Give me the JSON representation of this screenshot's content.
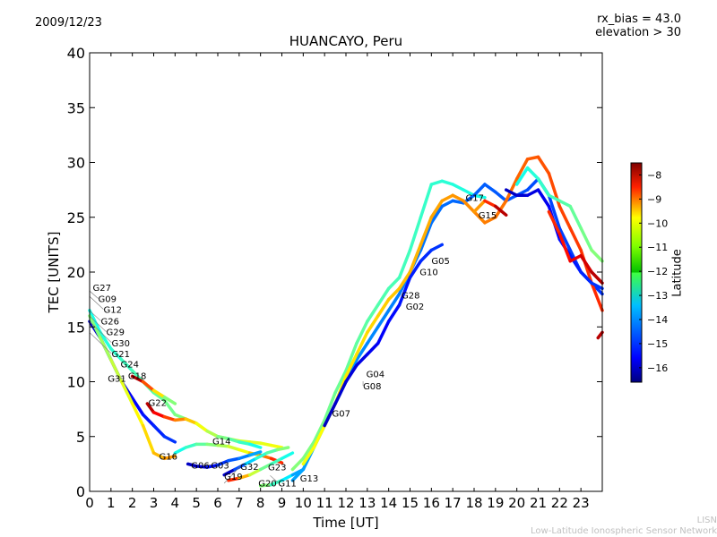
{
  "header": {
    "date": "2009/12/23",
    "rx_bias": "rx_bias = 43.0",
    "elevation": "elevation > 30"
  },
  "footer": {
    "short_name": "LISN",
    "long_name": "Low-Latitude Ionospheric Sensor Network"
  },
  "colorbar": {
    "label": "Latitude",
    "range": [
      -16.6,
      -7.5
    ],
    "ticks": [
      "−8",
      "−9",
      "−10",
      "−11",
      "−12",
      "−13",
      "−14",
      "−15",
      "−16"
    ],
    "tick_values": [
      -8,
      -9,
      -10,
      -11,
      -12,
      -13,
      -14,
      -15,
      -16
    ],
    "colormap": "jet"
  },
  "chart_data": {
    "type": "line",
    "title": "HUANCAYO, Peru",
    "xlabel": "Time [UT]",
    "ylabel": "TEC [UNITS]",
    "xlim": [
      0,
      24
    ],
    "ylim": [
      0,
      40
    ],
    "xticks": [
      "0",
      "1",
      "2",
      "3",
      "4",
      "5",
      "6",
      "7",
      "8",
      "9",
      "10",
      "11",
      "12",
      "13",
      "14",
      "15",
      "16",
      "17",
      "18",
      "19",
      "20",
      "21",
      "22",
      "23"
    ],
    "yticks": [
      "0",
      "5",
      "10",
      "15",
      "20",
      "25",
      "30",
      "35",
      "40"
    ],
    "grid": false,
    "series": [
      {
        "name": "G24-arc",
        "lat": [
          -13,
          -12,
          -11
        ],
        "x": [
          0,
          0.5,
          1,
          1.5,
          2,
          2.5,
          3,
          3.5,
          4,
          4.5,
          5,
          5.5,
          6,
          6.5,
          7,
          7.5,
          8,
          8.5,
          9
        ],
        "y": [
          16.5,
          14.5,
          13,
          12,
          11,
          10,
          9,
          8.3,
          7,
          6.6,
          6.2,
          5.5,
          5,
          4.8,
          4.6,
          4.5,
          4.4,
          4.2,
          4
        ]
      },
      {
        "name": "G18-arc",
        "lat": [
          -8,
          -10,
          -12
        ],
        "x": [
          2,
          2.5,
          3,
          3.5,
          4
        ],
        "y": [
          10.5,
          10,
          9.2,
          8.6,
          8
        ]
      },
      {
        "name": "G31-arc",
        "lat": [
          -16,
          -15
        ],
        "x": [
          0,
          0.5,
          1,
          1.5,
          2,
          2.5,
          3,
          3.5,
          4
        ],
        "y": [
          15.5,
          14,
          12,
          10,
          8.5,
          7,
          6,
          5,
          4.5
        ]
      },
      {
        "name": "G16-arc",
        "lat": [
          -12,
          -11,
          -10
        ],
        "x": [
          0,
          0.5,
          1,
          1.5,
          2,
          2.5,
          3,
          3.5,
          4
        ],
        "y": [
          16,
          14,
          12,
          10,
          8,
          6,
          3.5,
          3,
          3.2
        ]
      },
      {
        "name": "G22-arc",
        "lat": [
          -8,
          -10,
          -12,
          -13
        ],
        "x": [
          2.7,
          3,
          3.5,
          4,
          4.5,
          5,
          5.5,
          6,
          6.5,
          7,
          7.5,
          8
        ],
        "y": [
          8,
          7.2,
          6.8,
          6.5,
          6.6,
          6.2,
          5.5,
          5,
          4.8,
          4.5,
          4.3,
          4
        ]
      },
      {
        "name": "G14-arc",
        "lat": [
          -13,
          -12,
          -11,
          -9
        ],
        "x": [
          4,
          4.5,
          5,
          5.5,
          6,
          6.5,
          7,
          7.5,
          8,
          8.5,
          9
        ],
        "y": [
          3.5,
          4,
          4.3,
          4.3,
          4.2,
          4.1,
          3.8,
          3.5,
          3.3,
          3,
          2.6
        ]
      },
      {
        "name": "G03-arc",
        "lat": [
          -16,
          -15,
          -14
        ],
        "x": [
          4.6,
          5,
          5.5,
          6,
          6.5,
          7,
          7.5,
          8
        ],
        "y": [
          2.5,
          2.3,
          2.2,
          2.4,
          2.8,
          3,
          3.3,
          3.6
        ]
      },
      {
        "name": "G19-arc",
        "lat": [
          -16,
          -13,
          -12
        ],
        "x": [
          6.3,
          6.8,
          7.3,
          7.8,
          8.3,
          8.8,
          9.3
        ],
        "y": [
          1.5,
          2,
          2.5,
          3,
          3.5,
          3.8,
          4
        ]
      },
      {
        "name": "G32-arc",
        "lat": [
          -9,
          -12,
          -13
        ],
        "x": [
          6.5,
          7,
          7.5,
          8,
          8.5,
          9,
          9.5
        ],
        "y": [
          1,
          1.2,
          1.5,
          2,
          2.5,
          3,
          3.5
        ]
      },
      {
        "name": "G20-arc",
        "lat": [
          -12,
          -13,
          -14
        ],
        "x": [
          8,
          8.5,
          9,
          9.5,
          10
        ],
        "y": [
          0.5,
          0.6,
          1,
          1.5,
          2
        ]
      },
      {
        "name": "rise-green",
        "lat": [
          -12,
          -13
        ],
        "x": [
          9.5,
          10,
          10.5,
          11,
          11.5,
          12,
          12.5,
          13,
          13.5,
          14,
          14.5,
          15,
          15.5,
          16,
          16.5,
          17,
          17.5,
          18,
          18.5
        ],
        "y": [
          2,
          3,
          4.5,
          6.5,
          9,
          11,
          13.5,
          15.5,
          17,
          18.5,
          19.5,
          22,
          25,
          28,
          28.3,
          28,
          27.5,
          27,
          26.8
        ]
      },
      {
        "name": "rise-teal",
        "lat": [
          -14,
          -15
        ],
        "x": [
          9.5,
          10,
          10.5,
          11,
          11.5,
          12,
          12.5,
          13,
          13.5,
          14,
          14.5,
          15,
          15.5,
          16,
          16.5,
          17,
          17.5,
          18,
          18.5,
          19,
          19.5,
          20,
          20.5,
          21,
          21.5,
          22,
          22.5,
          23,
          23.5,
          24
        ],
        "y": [
          1,
          2,
          4,
          6,
          8,
          10,
          12,
          13.5,
          15,
          16.5,
          18,
          20,
          22,
          24.5,
          26,
          26.5,
          26.3,
          27,
          28,
          27.3,
          26.5,
          27,
          27.5,
          28.5,
          27,
          24,
          22,
          20,
          19,
          18
        ]
      },
      {
        "name": "rise-yellow",
        "lat": [
          -11,
          -10,
          -9
        ],
        "x": [
          10,
          10.5,
          11,
          11.5,
          12,
          12.5,
          13,
          13.5,
          14,
          14.5,
          15,
          15.5,
          16,
          16.5,
          17,
          17.5,
          18,
          18.5,
          19,
          19.5,
          20,
          20.5,
          21,
          21.5,
          22,
          22.5,
          23,
          23.5,
          24
        ],
        "y": [
          2.5,
          4,
          6,
          8,
          10.5,
          12.5,
          14.5,
          16,
          17.5,
          18.5,
          20,
          22.5,
          25,
          26.5,
          27,
          26.5,
          25.5,
          24.5,
          25,
          26.5,
          28.5,
          30.3,
          30.5,
          29,
          26,
          24,
          22,
          19,
          16.5
        ]
      },
      {
        "name": "rise-blue",
        "lat": [
          -16,
          -15
        ],
        "x": [
          11,
          11.5,
          12,
          12.5,
          13,
          13.5,
          14,
          14.5,
          15,
          15.5,
          16,
          16.5
        ],
        "y": [
          6,
          8,
          10,
          11.5,
          12.5,
          13.5,
          15.5,
          17,
          19.5,
          21,
          22,
          22.5
        ]
      },
      {
        "name": "G15-arc",
        "lat": [
          -10,
          -9,
          -8
        ],
        "x": [
          18,
          18.5,
          19,
          19.5
        ],
        "y": [
          25.5,
          26.5,
          26,
          25.2
        ]
      },
      {
        "name": "evening-blue",
        "lat": [
          -16,
          -15
        ],
        "x": [
          19.5,
          20,
          20.5,
          21,
          21.5,
          22,
          22.5,
          23,
          23.5,
          24
        ],
        "y": [
          27.5,
          27,
          27,
          27.5,
          26,
          23,
          21.5,
          20,
          19,
          18.5
        ]
      },
      {
        "name": "evening-green",
        "lat": [
          -13,
          -12
        ],
        "x": [
          20,
          20.5,
          21,
          21.5,
          22,
          22.5,
          23,
          23.5,
          24
        ],
        "y": [
          28,
          29.5,
          28.5,
          27,
          26.5,
          26,
          24,
          22,
          21
        ]
      },
      {
        "name": "evening-orange",
        "lat": [
          -9,
          -8
        ],
        "x": [
          21.5,
          22,
          22.5,
          23,
          23.5,
          24
        ],
        "y": [
          25.5,
          23.5,
          21,
          21.5,
          20,
          19
        ]
      },
      {
        "name": "late-red",
        "lat": [
          -8
        ],
        "x": [
          23.8,
          24
        ],
        "y": [
          14,
          14.5
        ]
      }
    ],
    "annotations": [
      {
        "text": "G27",
        "x": 0.02,
        "y": 18.3
      },
      {
        "text": "G09",
        "x": 0.02,
        "y": 18.0
      },
      {
        "text": "G12",
        "x": 0.02,
        "y": 17.5
      },
      {
        "text": "G26",
        "x": 0.02,
        "y": 16.2
      },
      {
        "text": "G29",
        "x": 0.02,
        "y": 15.7
      },
      {
        "text": "G30",
        "x": 0.02,
        "y": 15.2
      },
      {
        "text": "G21",
        "x": 0.02,
        "y": 14.2
      },
      {
        "text": "G24",
        "x": 1.45,
        "y": 11.3
      },
      {
        "text": "G18",
        "x": 1.8,
        "y": 10.5
      },
      {
        "text": "G31",
        "x": 1.1,
        "y": 10.0
      },
      {
        "text": "G22",
        "x": 2.75,
        "y": 7.8
      },
      {
        "text": "G16",
        "x": 3.25,
        "y": 2.9
      },
      {
        "text": "G06",
        "x": 4.75,
        "y": 2.1
      },
      {
        "text": "G03",
        "x": 5.3,
        "y": 2.1
      },
      {
        "text": "G14",
        "x": 5.75,
        "y": 4.3
      },
      {
        "text": "G19",
        "x": 6.3,
        "y": 1.3
      },
      {
        "text": "G32",
        "x": 6.3,
        "y": 0.5
      },
      {
        "text": "G20",
        "x": 7.9,
        "y": 0.2
      },
      {
        "text": "G23",
        "x": 8.35,
        "y": 1.9
      },
      {
        "text": "G11",
        "x": 8.45,
        "y": 1.2
      },
      {
        "text": "G13",
        "x": 9.85,
        "y": 0.9
      },
      {
        "text": "G07",
        "x": 11.35,
        "y": 6.8
      },
      {
        "text": "G04",
        "x": 12.95,
        "y": 10.4
      },
      {
        "text": "G08",
        "x": 12.8,
        "y": 9.8
      },
      {
        "text": "G28",
        "x": 14.6,
        "y": 17.6
      },
      {
        "text": "G02",
        "x": 14.8,
        "y": 16.8
      },
      {
        "text": "G10",
        "x": 15.45,
        "y": 19.7
      },
      {
        "text": "G05",
        "x": 16.0,
        "y": 20.5
      },
      {
        "text": "G17",
        "x": 17.6,
        "y": 26.5
      },
      {
        "text": "G15",
        "x": 18.2,
        "y": 24.9
      }
    ]
  }
}
